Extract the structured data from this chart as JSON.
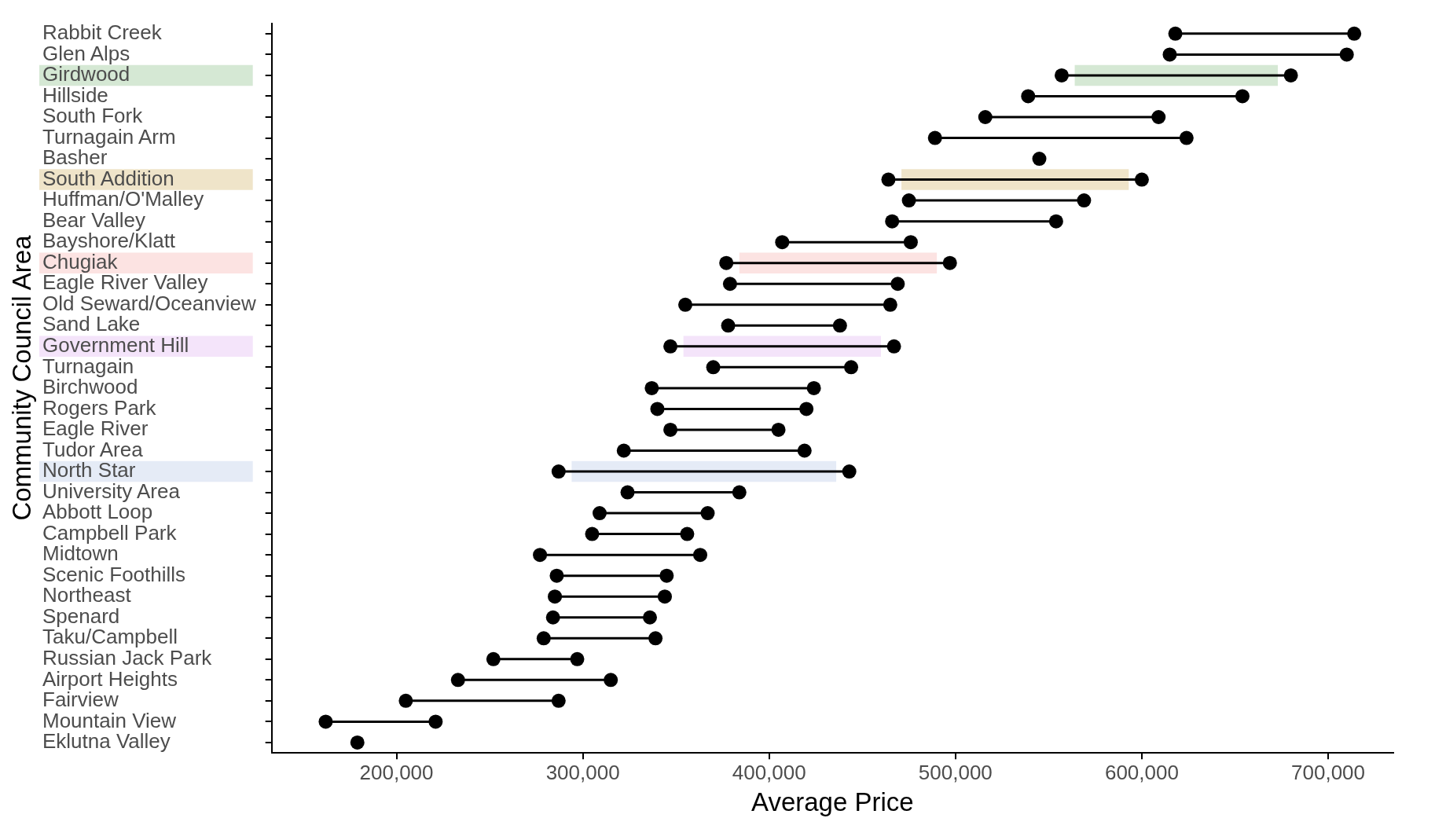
{
  "chart_data": {
    "type": "scatter",
    "orientation": "horizontal",
    "xlabel": "Average Price",
    "ylabel": "Community Council Area",
    "categories": [
      "Rabbit Creek",
      "Glen Alps",
      "Girdwood",
      "Hillside",
      "South Fork",
      "Turnagain Arm",
      "Basher",
      "South Addition",
      "Huffman/O'Malley",
      "Bear Valley",
      "Bayshore/Klatt",
      "Chugiak",
      "Eagle River Valley",
      "Old Seward/Oceanview",
      "Sand Lake",
      "Government Hill",
      "Turnagain",
      "Birchwood",
      "Rogers Park",
      "Eagle River",
      "Tudor Area",
      "North Star",
      "University Area",
      "Abbott Loop",
      "Campbell Park",
      "Midtown",
      "Scenic Foothills",
      "Northeast",
      "Spenard",
      "Taku/Campbell",
      "Russian Jack Park",
      "Airport Heights",
      "Fairview",
      "Mountain View",
      "Eklutna Valley"
    ],
    "series": [
      {
        "type": "scatter",
        "color": "#000000",
        "values": [
          618000,
          615000,
          557000,
          539000,
          516000,
          489000,
          545000,
          464000,
          475000,
          466000,
          407000,
          377000,
          379000,
          355000,
          378000,
          347000,
          370000,
          337000,
          340000,
          347000,
          322000,
          287000,
          324000,
          309000,
          305000,
          277000,
          286000,
          285000,
          284000,
          279000,
          252000,
          233000,
          205000,
          162000,
          179000
        ]
      },
      {
        "type": "scatter",
        "color": "#000000",
        "values": [
          714000,
          710000,
          680000,
          654000,
          609000,
          624000,
          null,
          600000,
          569000,
          554000,
          476000,
          497000,
          469000,
          465000,
          438000,
          467000,
          444000,
          424000,
          420000,
          405000,
          419000,
          443000,
          384000,
          367000,
          356000,
          363000,
          345000,
          344000,
          336000,
          339000,
          297000,
          315000,
          287000,
          221000,
          null
        ]
      }
    ],
    "marker": "circle",
    "grid": false,
    "legend": false,
    "xlim": [
      133000,
      735000
    ],
    "xticks": [
      {
        "value": 200000,
        "label": "200,000"
      },
      {
        "value": 300000,
        "label": "300,000"
      },
      {
        "value": 400000,
        "label": "400,000"
      },
      {
        "value": 500000,
        "label": "500,000"
      },
      {
        "value": 600000,
        "label": "600,000"
      },
      {
        "value": 700000,
        "label": "700,000"
      }
    ],
    "bands": [
      {
        "axis": "y",
        "from": "Girdwood",
        "to": "Girdwood",
        "color": "#d5e8d4"
      },
      {
        "axis": "y",
        "from": "South Addition",
        "to": "South Addition",
        "color": "#efe4c9"
      },
      {
        "axis": "y",
        "from": "Chugiak",
        "to": "Chugiak",
        "color": "#fce3e2"
      },
      {
        "axis": "y",
        "from": "Government Hill",
        "to": "Government Hill",
        "color": "#f4e4fa"
      },
      {
        "axis": "y",
        "from": "North Star",
        "to": "North Star",
        "color": "#e5ebf6"
      }
    ]
  }
}
